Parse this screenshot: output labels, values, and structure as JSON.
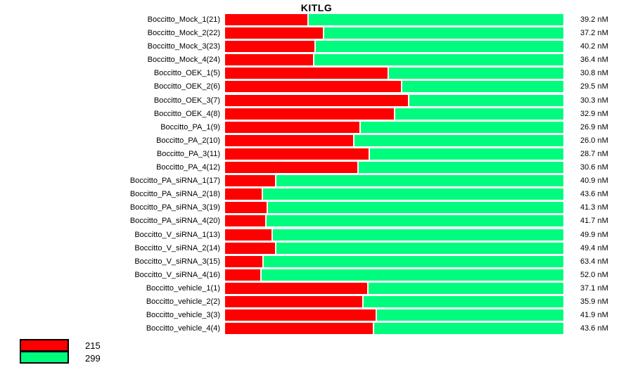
{
  "chart_data": {
    "type": "bar",
    "orientation": "horizontal",
    "stacked": true,
    "title": "KITLG",
    "xlabel": "",
    "ylabel": "",
    "xlim": [
      0,
      100
    ],
    "grid": false,
    "legend_position": "bottom-left",
    "categories": [
      "Boccitto_Mock_1(21)",
      "Boccitto_Mock_2(22)",
      "Boccitto_Mock_3(23)",
      "Boccitto_Mock_4(24)",
      "Boccitto_OEK_1(5)",
      "Boccitto_OEK_2(6)",
      "Boccitto_OEK_3(7)",
      "Boccitto_OEK_4(8)",
      "Boccitto_PA_1(9)",
      "Boccitto_PA_2(10)",
      "Boccitto_PA_3(11)",
      "Boccitto_PA_4(12)",
      "Boccitto_PA_siRNA_1(17)",
      "Boccitto_PA_siRNA_2(18)",
      "Boccitto_PA_siRNA_3(19)",
      "Boccitto_PA_siRNA_4(20)",
      "Boccitto_V_siRNA_1(13)",
      "Boccitto_V_siRNA_2(14)",
      "Boccitto_V_siRNA_3(15)",
      "Boccitto_V_siRNA_4(16)",
      "Boccitto_vehicle_1(1)",
      "Boccitto_vehicle_2(2)",
      "Boccitto_vehicle_3(3)",
      "Boccitto_vehicle_4(4)"
    ],
    "series": [
      {
        "name": "215",
        "color": "#ff0000",
        "unit": "percent",
        "values": [
          24.8,
          29.3,
          26.9,
          26.4,
          48.5,
          52.4,
          54.5,
          50.4,
          40.1,
          38.3,
          42.9,
          39.4,
          15.2,
          11.2,
          12.6,
          12.2,
          14.2,
          15.1,
          11.5,
          10.9,
          42.4,
          40.9,
          45.0,
          44.1
        ]
      },
      {
        "name": "299",
        "color": "#00fc7e",
        "unit": "percent",
        "values": [
          75.2,
          70.7,
          73.1,
          73.6,
          51.5,
          47.6,
          45.5,
          49.6,
          59.9,
          61.7,
          57.1,
          60.6,
          84.8,
          88.8,
          87.4,
          87.8,
          85.8,
          84.9,
          88.5,
          89.1,
          57.6,
          59.1,
          55.0,
          55.9
        ]
      }
    ],
    "value_labels": [
      "39.2 nM",
      "37.2 nM",
      "40.2 nM",
      "36.4 nM",
      "30.8 nM",
      "29.5 nM",
      "30.3 nM",
      "32.9 nM",
      "26.9 nM",
      "26.0 nM",
      "28.7 nM",
      "30.6 nM",
      "40.9 nM",
      "43.6 nM",
      "41.3 nM",
      "41.7 nM",
      "49.9 nM",
      "49.4 nM",
      "63.4 nM",
      "52.0 nM",
      "37.1 nM",
      "35.9 nM",
      "41.9 nM",
      "43.6 nM"
    ]
  }
}
